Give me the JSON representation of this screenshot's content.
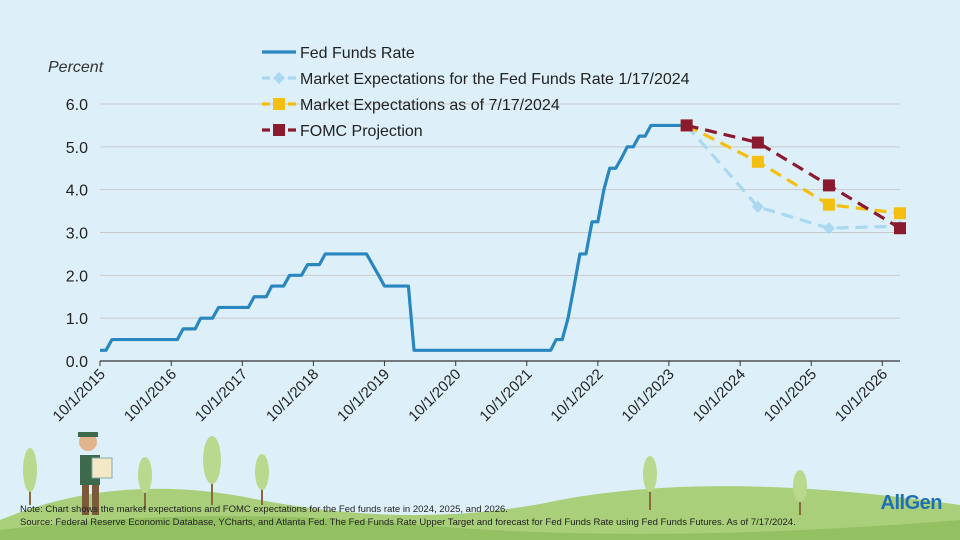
{
  "logo": "AllGen",
  "chart_data": {
    "type": "line",
    "y_label": "Percent",
    "note": "Note: Chart shows the market expectations and FOMC expectations for the Fed funds rate in 2024, 2025, and 2026.",
    "source": "Source: Federal Reserve Economic Database, YCharts, and Atlanta Fed. The Fed Funds Rate Upper Target and forecast for Fed Funds Rate using Fed Funds Futures. As of 7/17/2024.",
    "xlim": [
      "10/1/2015",
      "12/31/2026"
    ],
    "xticks": [
      "10/1/2015",
      "10/1/2016",
      "10/1/2017",
      "10/1/2018",
      "10/1/2019",
      "10/1/2020",
      "10/1/2021",
      "10/1/2022",
      "10/1/2023",
      "10/1/2024",
      "10/1/2025",
      "10/1/2026"
    ],
    "ylim": [
      0,
      6
    ],
    "yticks": [
      {
        "value": 0,
        "label": "0.0"
      },
      {
        "value": 1,
        "label": "1.0"
      },
      {
        "value": 2,
        "label": "2.0"
      },
      {
        "value": 3,
        "label": "3.0"
      },
      {
        "value": 4,
        "label": "4.0"
      },
      {
        "value": 5,
        "label": "5.0"
      },
      {
        "value": 6,
        "label": "6.0"
      }
    ],
    "grid": true,
    "series": [
      {
        "name": "Fed Funds Rate",
        "color": "#2a86bf",
        "dashed": false,
        "marker": "none",
        "x": [
          "10/1/2015",
          "11/1/2015",
          "12/1/2015",
          "11/1/2016",
          "12/1/2016",
          "2/1/2017",
          "3/1/2017",
          "5/1/2017",
          "6/1/2017",
          "11/1/2017",
          "12/1/2017",
          "2/1/2018",
          "3/1/2018",
          "5/1/2018",
          "6/1/2018",
          "8/1/2018",
          "9/1/2018",
          "11/1/2018",
          "12/1/2018",
          "7/1/2019",
          "8/1/2019",
          "9/1/2019",
          "10/1/2019",
          "2/1/2020",
          "3/1/2020",
          "2/1/2022",
          "3/1/2022",
          "4/1/2022",
          "5/1/2022",
          "6/1/2022",
          "7/1/2022",
          "8/1/2022",
          "9/1/2022",
          "10/1/2022",
          "11/1/2022",
          "12/1/2022",
          "1/1/2023",
          "2/1/2023",
          "3/1/2023",
          "4/1/2023",
          "5/1/2023",
          "6/1/2023",
          "7/1/2023",
          "12/31/2023"
        ],
        "values": [
          0.25,
          0.25,
          0.5,
          0.5,
          0.75,
          0.75,
          1.0,
          1.0,
          1.25,
          1.25,
          1.5,
          1.5,
          1.75,
          1.75,
          2.0,
          2.0,
          2.25,
          2.25,
          2.5,
          2.5,
          2.25,
          2.0,
          1.75,
          1.75,
          0.25,
          0.25,
          0.5,
          0.5,
          1.0,
          1.75,
          2.5,
          2.5,
          3.25,
          3.25,
          4.0,
          4.5,
          4.5,
          4.75,
          5.0,
          5.0,
          5.25,
          5.25,
          5.5,
          5.5
        ]
      },
      {
        "name": "Market Expectations for the Fed Funds Rate 1/17/2024",
        "color": "#a9d8f0",
        "dashed": true,
        "marker": "diamond",
        "x": [
          "12/31/2023",
          "12/31/2024",
          "12/31/2025",
          "12/31/2026"
        ],
        "values": [
          5.5,
          3.6,
          3.1,
          3.15
        ]
      },
      {
        "name": "Market Expectations as of 7/17/2024",
        "color": "#f5bf0f",
        "dashed": true,
        "marker": "square",
        "x": [
          "12/31/2023",
          "12/31/2024",
          "12/31/2025",
          "12/31/2026"
        ],
        "values": [
          5.5,
          4.65,
          3.65,
          3.45
        ]
      },
      {
        "name": "FOMC Projection",
        "color": "#8b1a2e",
        "dashed": true,
        "marker": "square",
        "x": [
          "12/31/2023",
          "12/31/2024",
          "12/31/2025",
          "12/31/2026"
        ],
        "values": [
          5.5,
          5.1,
          4.1,
          3.1
        ]
      }
    ]
  }
}
